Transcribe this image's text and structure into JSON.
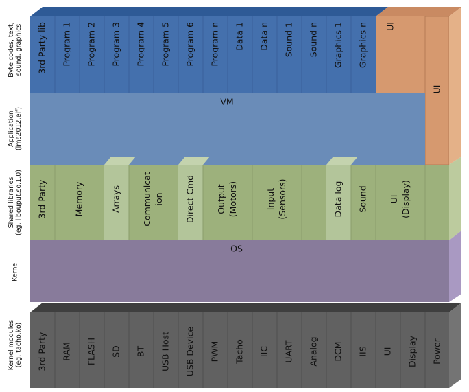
{
  "layer_labels": [
    [
      "Byte codes, text,",
      "sound, graphics"
    ],
    [
      "Application",
      "(lms2012.elf)"
    ],
    [
      "Shared libraries",
      "(eg. libouput.so.1.0)"
    ],
    [
      "Kernel"
    ],
    [
      "Kernel modules",
      "(eg. tacho.ko)"
    ]
  ],
  "bytecode": {
    "items": [
      "3rd Party lib",
      "Program 1",
      "Program 2",
      "Program 3",
      "Program 4",
      "Program 5",
      "Program 6",
      "Program n",
      "Data 1",
      "Data n",
      "Sound 1",
      "Sound n",
      "Graphics 1",
      "Graphics n"
    ],
    "ui": "UI"
  },
  "ui_column": "UI",
  "application": {
    "label": "VM"
  },
  "shared_libraries": {
    "items": [
      [
        "3rd Party"
      ],
      [
        "Memory"
      ],
      [
        "Arrays"
      ],
      [
        "Communicat",
        "ion"
      ],
      [
        "Direct Cmd"
      ],
      [
        "Output",
        "(Motors)"
      ],
      [
        "Input",
        "(Sensors)"
      ],
      [
        "Data log"
      ],
      [
        "Sound"
      ],
      [
        "UI",
        "(Display)"
      ]
    ]
  },
  "kernel": {
    "label": "OS"
  },
  "kernel_modules": {
    "items": [
      "3rd Party",
      "RAM",
      "FLASH",
      "SD",
      "BT",
      "USB Host",
      "USB Device",
      "PWM",
      "Tacho",
      "IIC",
      "UART",
      "Analog",
      "DCM",
      "IIS",
      "UI",
      "Display",
      "Power"
    ]
  }
}
